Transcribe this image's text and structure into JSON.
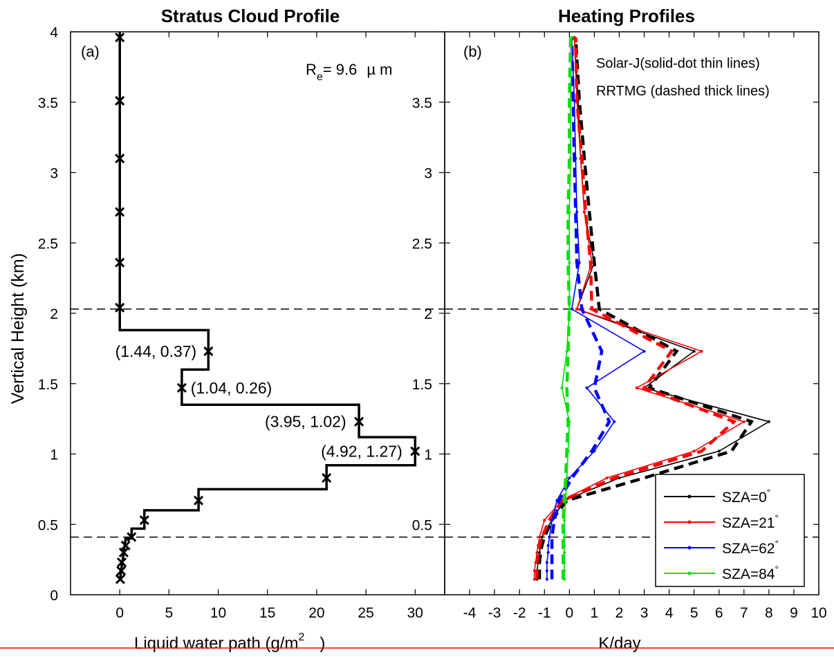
{
  "chart_data": [
    {
      "type": "line",
      "title": "Stratus Cloud Profile",
      "panel_label": "(a)",
      "xlabel_main": "Liquid water path (g/m",
      "xlabel_sup": "2",
      "xlabel_end": ")",
      "ylabel": "Vertical Height (km)",
      "xlim": [
        -5,
        33
      ],
      "ylim": [
        0,
        4
      ],
      "xticks": [
        0,
        5,
        10,
        15,
        20,
        25,
        30
      ],
      "yticks": [
        0,
        0.5,
        1,
        1.5,
        2,
        2.5,
        3,
        3.5,
        4
      ],
      "ytick_labels": [
        "0",
        "0.5",
        "1",
        "1.5",
        "2",
        "2.5",
        "3",
        "3.5",
        "4"
      ],
      "effective_radius": {
        "label": "R",
        "sub": "e",
        "value": "= 9.6",
        "unit": "µ m"
      },
      "series": [
        {
          "kind": "step-profile",
          "color": "#000000",
          "points": [
            [
              0,
              4.0
            ],
            [
              0,
              1.88
            ],
            [
              9.0,
              1.88
            ],
            [
              9.0,
              1.6
            ],
            [
              6.3,
              1.6
            ],
            [
              6.3,
              1.35
            ],
            [
              24.3,
              1.35
            ],
            [
              24.3,
              1.12
            ],
            [
              30.0,
              1.12
            ],
            [
              30.0,
              0.92
            ],
            [
              21.0,
              0.92
            ],
            [
              21.0,
              0.75
            ],
            [
              8.0,
              0.75
            ],
            [
              8.0,
              0.6
            ],
            [
              2.5,
              0.6
            ],
            [
              2.5,
              0.47
            ],
            [
              1.2,
              0.47
            ],
            [
              1.2,
              0.4
            ],
            [
              0.6,
              0.4
            ],
            [
              0.4,
              0.3
            ],
            [
              0.2,
              0.2
            ],
            [
              0,
              0.1
            ]
          ]
        },
        {
          "kind": "markers",
          "marker": "x",
          "x": [
            0,
            0,
            0,
            0,
            0,
            0,
            9.0,
            6.3,
            24.3,
            30.0,
            21.0,
            8.0,
            2.5,
            1.2,
            0.6,
            0.4,
            0.2,
            0.15,
            0.05
          ],
          "y": [
            3.96,
            3.51,
            3.1,
            2.72,
            2.36,
            2.04,
            1.73,
            1.47,
            1.23,
            1.02,
            0.83,
            0.67,
            0.53,
            0.41,
            0.35,
            0.3,
            0.23,
            0.17,
            0.11
          ]
        }
      ],
      "annotations": [
        {
          "text": "(1.44, 0.37)",
          "x": 7.8,
          "y": 1.73,
          "anchor": "end"
        },
        {
          "text": "(1.04, 0.26)",
          "x": 7.2,
          "y": 1.47,
          "anchor": "start"
        },
        {
          "text": "(3.95, 1.02)",
          "x": 23.0,
          "y": 1.23,
          "anchor": "end"
        },
        {
          "text": "(4.92, 1.27)",
          "x": 28.7,
          "y": 1.02,
          "anchor": "end"
        }
      ],
      "hlines": [
        2.03,
        0.41
      ]
    },
    {
      "type": "line",
      "title": "Heating Profiles",
      "panel_label": "(b)",
      "xlabel": "K/day",
      "xlim": [
        -5,
        10
      ],
      "ylim": [
        0,
        4
      ],
      "xticks": [
        -4,
        -3,
        -2,
        -1,
        0,
        1,
        2,
        3,
        4,
        5,
        6,
        7,
        8,
        9,
        10
      ],
      "yticks": [
        0.5,
        1,
        1.5,
        2,
        2.5,
        3,
        3.5
      ],
      "ytick_labels": [
        "0.5",
        "1",
        "1.5",
        "2",
        "2.5",
        "3",
        "3.5"
      ],
      "notes": [
        "Solar-J(solid-dot thin lines)",
        "RRTMG (dashed thick lines)"
      ],
      "hlines": [
        2.03,
        0.41
      ],
      "y": [
        0.11,
        0.17,
        0.23,
        0.3,
        0.35,
        0.41,
        0.53,
        0.67,
        0.83,
        1.02,
        1.23,
        1.47,
        1.73,
        2.03,
        2.36,
        2.72,
        3.1,
        3.51,
        3.96
      ],
      "series": [
        {
          "name": "SZA=0",
          "color": "#000000",
          "style": "solid",
          "x": [
            -1.3,
            -1.3,
            -1.25,
            -1.2,
            -1.15,
            -1.1,
            -0.7,
            -0.2,
            2.0,
            6.0,
            8.0,
            3.0,
            5.0,
            0.3,
            1.0,
            0.6,
            0.45,
            0.35,
            0.2
          ]
        },
        {
          "name": "SZA=0",
          "color": "#000000",
          "style": "dashed",
          "x": [
            -1.2,
            -1.2,
            -1.2,
            -1.15,
            -1.1,
            -1.0,
            -0.7,
            -0.1,
            3.0,
            6.5,
            7.3,
            3.2,
            4.3,
            1.2,
            1.0,
            0.8,
            0.6,
            0.4,
            0.25
          ]
        },
        {
          "name": "SZA=21",
          "color": "#ff0000",
          "style": "solid",
          "x": [
            -1.4,
            -1.4,
            -1.35,
            -1.3,
            -1.25,
            -1.2,
            -1.0,
            -0.3,
            1.5,
            5.0,
            7.0,
            2.7,
            5.3,
            0.3,
            0.9,
            0.6,
            0.45,
            0.3,
            0.2
          ]
        },
        {
          "name": "SZA=21",
          "color": "#ff0000",
          "style": "dashed",
          "x": [
            -1.3,
            -1.3,
            -1.3,
            -1.25,
            -1.2,
            -1.1,
            -0.8,
            -0.3,
            1.8,
            5.3,
            6.6,
            3.0,
            4.1,
            0.9,
            0.85,
            0.65,
            0.5,
            0.3,
            0.25
          ]
        },
        {
          "name": "SZA=62",
          "color": "#0000ff",
          "style": "solid",
          "x": [
            -0.9,
            -0.9,
            -0.9,
            -0.85,
            -0.85,
            -0.8,
            -0.7,
            -0.5,
            0.0,
            1.0,
            1.8,
            0.7,
            3.0,
            0.1,
            0.4,
            0.3,
            0.25,
            0.2,
            0.1
          ]
        },
        {
          "name": "SZA=62",
          "color": "#0000ff",
          "style": "dashed",
          "x": [
            -0.7,
            -0.7,
            -0.7,
            -0.7,
            -0.7,
            -0.7,
            -0.6,
            -0.4,
            0.1,
            0.9,
            1.6,
            1.0,
            1.3,
            0.5,
            0.3,
            0.25,
            0.2,
            0.15,
            0.1
          ]
        },
        {
          "name": "SZA=84",
          "color": "#00e000",
          "style": "solid",
          "x": [
            -0.2,
            -0.2,
            -0.2,
            -0.2,
            -0.2,
            -0.2,
            -0.2,
            -0.15,
            -0.1,
            -0.05,
            0.0,
            -0.3,
            -0.1,
            0.0,
            0.0,
            0.0,
            0.05,
            0.05,
            0.1
          ]
        },
        {
          "name": "SZA=84",
          "color": "#00e000",
          "style": "dashed",
          "x": [
            -0.25,
            -0.25,
            -0.25,
            -0.25,
            -0.25,
            -0.25,
            -0.25,
            -0.2,
            -0.15,
            -0.1,
            -0.05,
            -0.1,
            -0.05,
            0.0,
            -0.05,
            -0.05,
            0.0,
            0.0,
            0.05
          ]
        }
      ],
      "legend": {
        "position": "bottom-right",
        "entries": [
          {
            "label": "SZA=0",
            "deg": "°",
            "color": "#000000"
          },
          {
            "label": "SZA=21",
            "deg": "°",
            "color": "#ff0000"
          },
          {
            "label": "SZA=62",
            "deg": "°",
            "color": "#0000ff"
          },
          {
            "label": "SZA=84",
            "deg": "°",
            "color": "#00e000"
          }
        ]
      }
    }
  ]
}
